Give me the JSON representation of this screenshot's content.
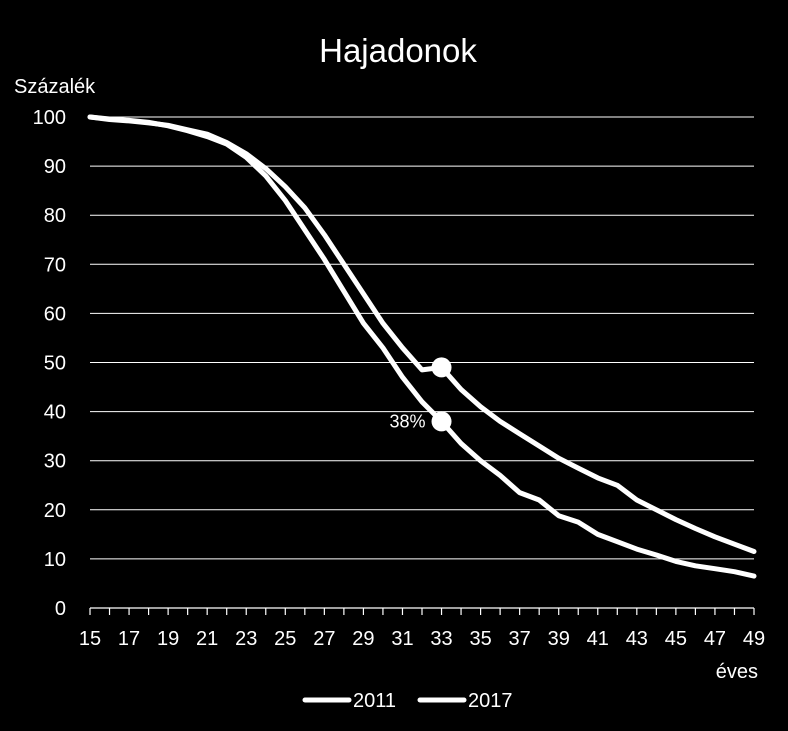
{
  "chart_data": {
    "type": "line",
    "title": "Hajadonok",
    "ylabel": "Százalék",
    "xlabel": "éves",
    "ylim": [
      0,
      100
    ],
    "xlim": [
      15,
      49
    ],
    "y_ticks": [
      0,
      10,
      20,
      30,
      40,
      50,
      60,
      70,
      80,
      90,
      100
    ],
    "x_tick_labels": [
      15,
      17,
      19,
      21,
      23,
      25,
      27,
      29,
      31,
      33,
      35,
      37,
      39,
      41,
      43,
      45,
      47,
      49
    ],
    "grid": true,
    "legend_position": "bottom",
    "x": [
      15,
      16,
      17,
      18,
      19,
      20,
      21,
      22,
      23,
      24,
      25,
      26,
      27,
      28,
      29,
      30,
      31,
      32,
      33,
      34,
      35,
      36,
      37,
      38,
      39,
      40,
      41,
      42,
      43,
      44,
      45,
      46,
      47,
      48,
      49
    ],
    "series": [
      {
        "name": "2011",
        "color": "#ffffff",
        "values": [
          100,
          99.5,
          99.2,
          98.8,
          98.3,
          97.4,
          96.5,
          94.8,
          92.5,
          89.5,
          85.8,
          81.5,
          76,
          70,
          64,
          58,
          53,
          48.5,
          49,
          44.5,
          41,
          38,
          35.5,
          33,
          30.5,
          28.5,
          26.5,
          25,
          22,
          20,
          18,
          16.2,
          14.5,
          13,
          11.5
        ]
      },
      {
        "name": "2017",
        "color": "#ffffff",
        "values": [
          100,
          99.6,
          99.3,
          98.9,
          98.2,
          97.2,
          96,
          94.5,
          91.8,
          88,
          83,
          77,
          71,
          64.5,
          58,
          53,
          47,
          42,
          38,
          33.5,
          30,
          27,
          23.5,
          22,
          18.8,
          17.5,
          15,
          13.5,
          12,
          10.8,
          9.5,
          8.6,
          8,
          7.4,
          6.5
        ]
      }
    ],
    "highlights": [
      {
        "series": "2011",
        "x": 33,
        "y": 49,
        "label": ""
      },
      {
        "series": "2017",
        "x": 33,
        "y": 38,
        "label": "38%"
      }
    ]
  }
}
